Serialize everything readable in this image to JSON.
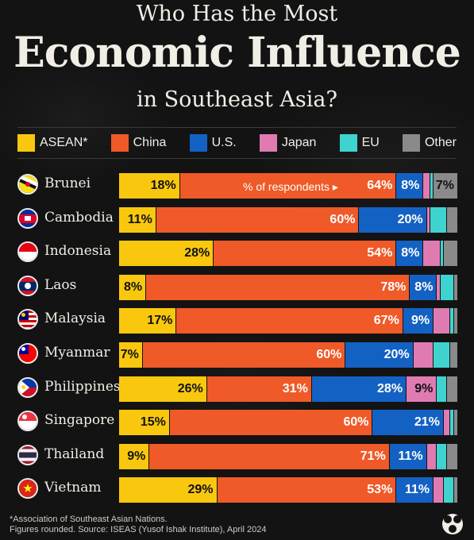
{
  "header": {
    "line1": "Who Has the Most",
    "line2": "Economic Influence",
    "line3": "in Southeast Asia?"
  },
  "legend": [
    {
      "label": "ASEAN*",
      "color": "#f9c80e"
    },
    {
      "label": "China",
      "color": "#ef5a28"
    },
    {
      "label": "U.S.",
      "color": "#1461c4"
    },
    {
      "label": "Japan",
      "color": "#e07bb2"
    },
    {
      "label": "EU",
      "color": "#3fd3d0"
    },
    {
      "label": "Other",
      "color": "#8a8a8a"
    }
  ],
  "respondents_note": "% of respondents ▸",
  "chart_data": {
    "type": "bar",
    "orientation": "horizontal",
    "stacked": true,
    "categories": [
      "Brunei",
      "Cambodia",
      "Indonesia",
      "Laos",
      "Malaysia",
      "Myanmar",
      "Philippines",
      "Singapore",
      "Thailand",
      "Vietnam"
    ],
    "series": [
      {
        "name": "ASEAN*",
        "color": "#f9c80e",
        "values": [
          18,
          11,
          28,
          8,
          17,
          7,
          26,
          15,
          9,
          29
        ]
      },
      {
        "name": "China",
        "color": "#ef5a28",
        "values": [
          64,
          60,
          54,
          78,
          67,
          60,
          31,
          60,
          71,
          53
        ]
      },
      {
        "name": "U.S.",
        "color": "#1461c4",
        "values": [
          8,
          20,
          8,
          8,
          9,
          20,
          28,
          21,
          11,
          11
        ]
      },
      {
        "name": "Japan",
        "color": "#e07bb2",
        "values": [
          2,
          1,
          5,
          1,
          5,
          6,
          9,
          2,
          3,
          3
        ]
      },
      {
        "name": "EU",
        "color": "#3fd3d0",
        "values": [
          1,
          5,
          1,
          4,
          1,
          5,
          3,
          1,
          3,
          3
        ]
      },
      {
        "name": "Other",
        "color": "#8a8a8a",
        "values": [
          7,
          3,
          4,
          1,
          1,
          2,
          3,
          1,
          3,
          1
        ]
      }
    ],
    "value_labels_shown": {
      "ASEAN*": [
        "18%",
        "11%",
        "28%",
        "8%",
        "17%",
        "7%",
        "26%",
        "15%",
        "9%",
        "29%"
      ],
      "China": [
        "64%",
        "60%",
        "54%",
        "78%",
        "67%",
        "60%",
        "31%",
        "60%",
        "71%",
        "53%"
      ],
      "U.S.": [
        "8%",
        "20%",
        "8%",
        "8%",
        "9%",
        "20%",
        "28%",
        "21%",
        "11%",
        "11%"
      ],
      "Japan": [
        "",
        "",
        "",
        "",
        "",
        "",
        "9%",
        "",
        "",
        ""
      ],
      "EU": [
        "",
        "",
        "",
        "",
        "",
        "",
        "",
        "",
        "",
        ""
      ],
      "Other": [
        "7%",
        "",
        "",
        "",
        "",
        "",
        "",
        "",
        "",
        ""
      ]
    },
    "xlim": [
      0,
      100
    ],
    "unit": "% of respondents"
  },
  "footer": {
    "note": "*Association of Southeast Asian Nations.",
    "source": "Figures rounded. Source: ISEAS (Yusof Ishak Institute), April 2024"
  }
}
